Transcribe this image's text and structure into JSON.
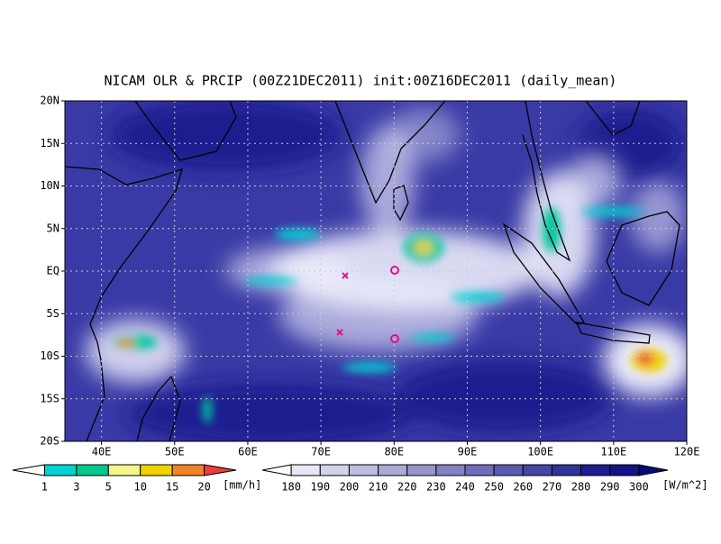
{
  "title": "NICAM OLR & PRCIP (00Z21DEC2011) init:00Z16DEC2011 (daily_mean)",
  "map": {
    "lat_labels": [
      "20N",
      "15N",
      "10N",
      "5N",
      "EQ",
      "5S",
      "10S",
      "15S",
      "20S"
    ],
    "lon_labels": [
      "40E",
      "50E",
      "60E",
      "70E",
      "80E",
      "90E",
      "100E",
      "110E",
      "120E"
    ]
  },
  "precip_legend": {
    "labels": [
      1,
      3,
      5,
      10,
      15,
      20
    ],
    "unit": "[mm/h]",
    "colors": [
      "#ffffff",
      "#00d2d2",
      "#00c88c",
      "#f5f58c",
      "#f0d200",
      "#f08228",
      "#f03c3c"
    ]
  },
  "olr_legend": {
    "labels": [
      180,
      190,
      200,
      210,
      220,
      230,
      240,
      250,
      260,
      270,
      280,
      290,
      300
    ],
    "unit": "[W/m^2]",
    "colors": [
      "#ffffff",
      "#e6e6f5",
      "#d2d2eb",
      "#bebee1",
      "#aaaad7",
      "#9696cd",
      "#8282c3",
      "#6e6eb9",
      "#5a5aaf",
      "#4646a5",
      "#32329b",
      "#1e1e91",
      "#141487",
      "#0a0a78"
    ]
  }
}
